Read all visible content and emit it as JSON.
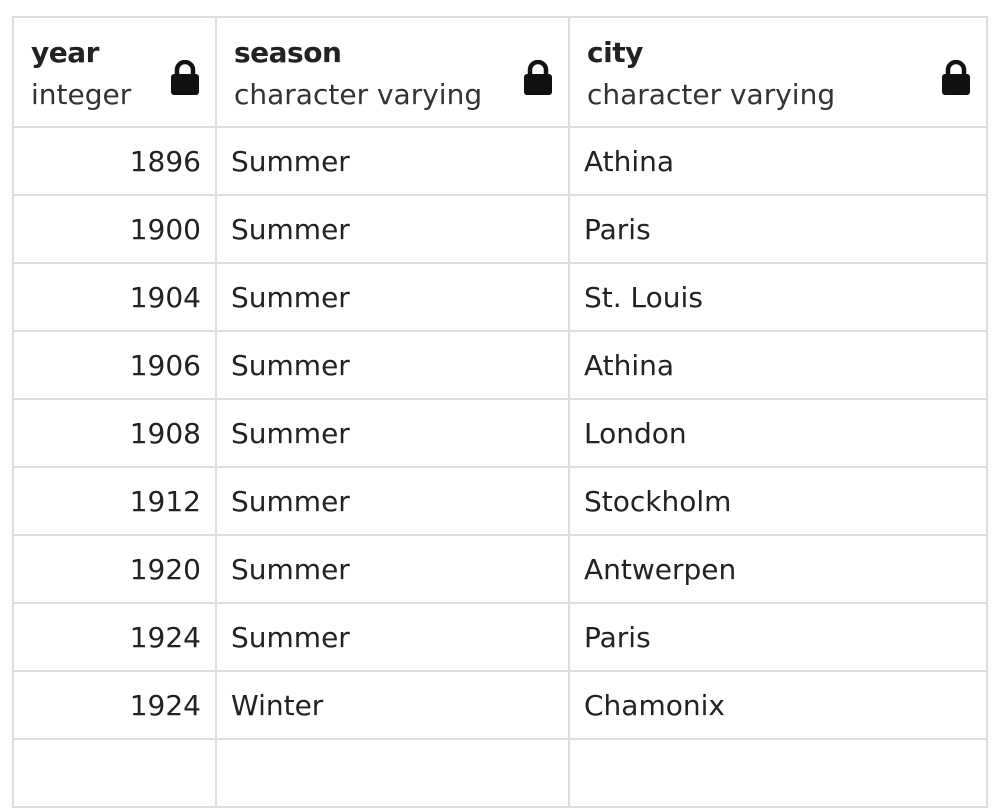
{
  "columns": [
    {
      "name": "year",
      "type": "integer"
    },
    {
      "name": "season",
      "type": "character varying"
    },
    {
      "name": "city",
      "type": "character varying"
    }
  ],
  "icons": {
    "lock": "lock-icon"
  },
  "rows": [
    {
      "year": "1896",
      "season": "Summer",
      "city": "Athina"
    },
    {
      "year": "1900",
      "season": "Summer",
      "city": "Paris"
    },
    {
      "year": "1904",
      "season": "Summer",
      "city": "St. Louis"
    },
    {
      "year": "1906",
      "season": "Summer",
      "city": "Athina"
    },
    {
      "year": "1908",
      "season": "Summer",
      "city": "London"
    },
    {
      "year": "1912",
      "season": "Summer",
      "city": "Stockholm"
    },
    {
      "year": "1920",
      "season": "Summer",
      "city": "Antwerpen"
    },
    {
      "year": "1924",
      "season": "Summer",
      "city": "Paris"
    },
    {
      "year": "1924",
      "season": "Winter",
      "city": "Chamonix"
    }
  ],
  "colors": {
    "border": "#dedede",
    "text": "#222222"
  }
}
